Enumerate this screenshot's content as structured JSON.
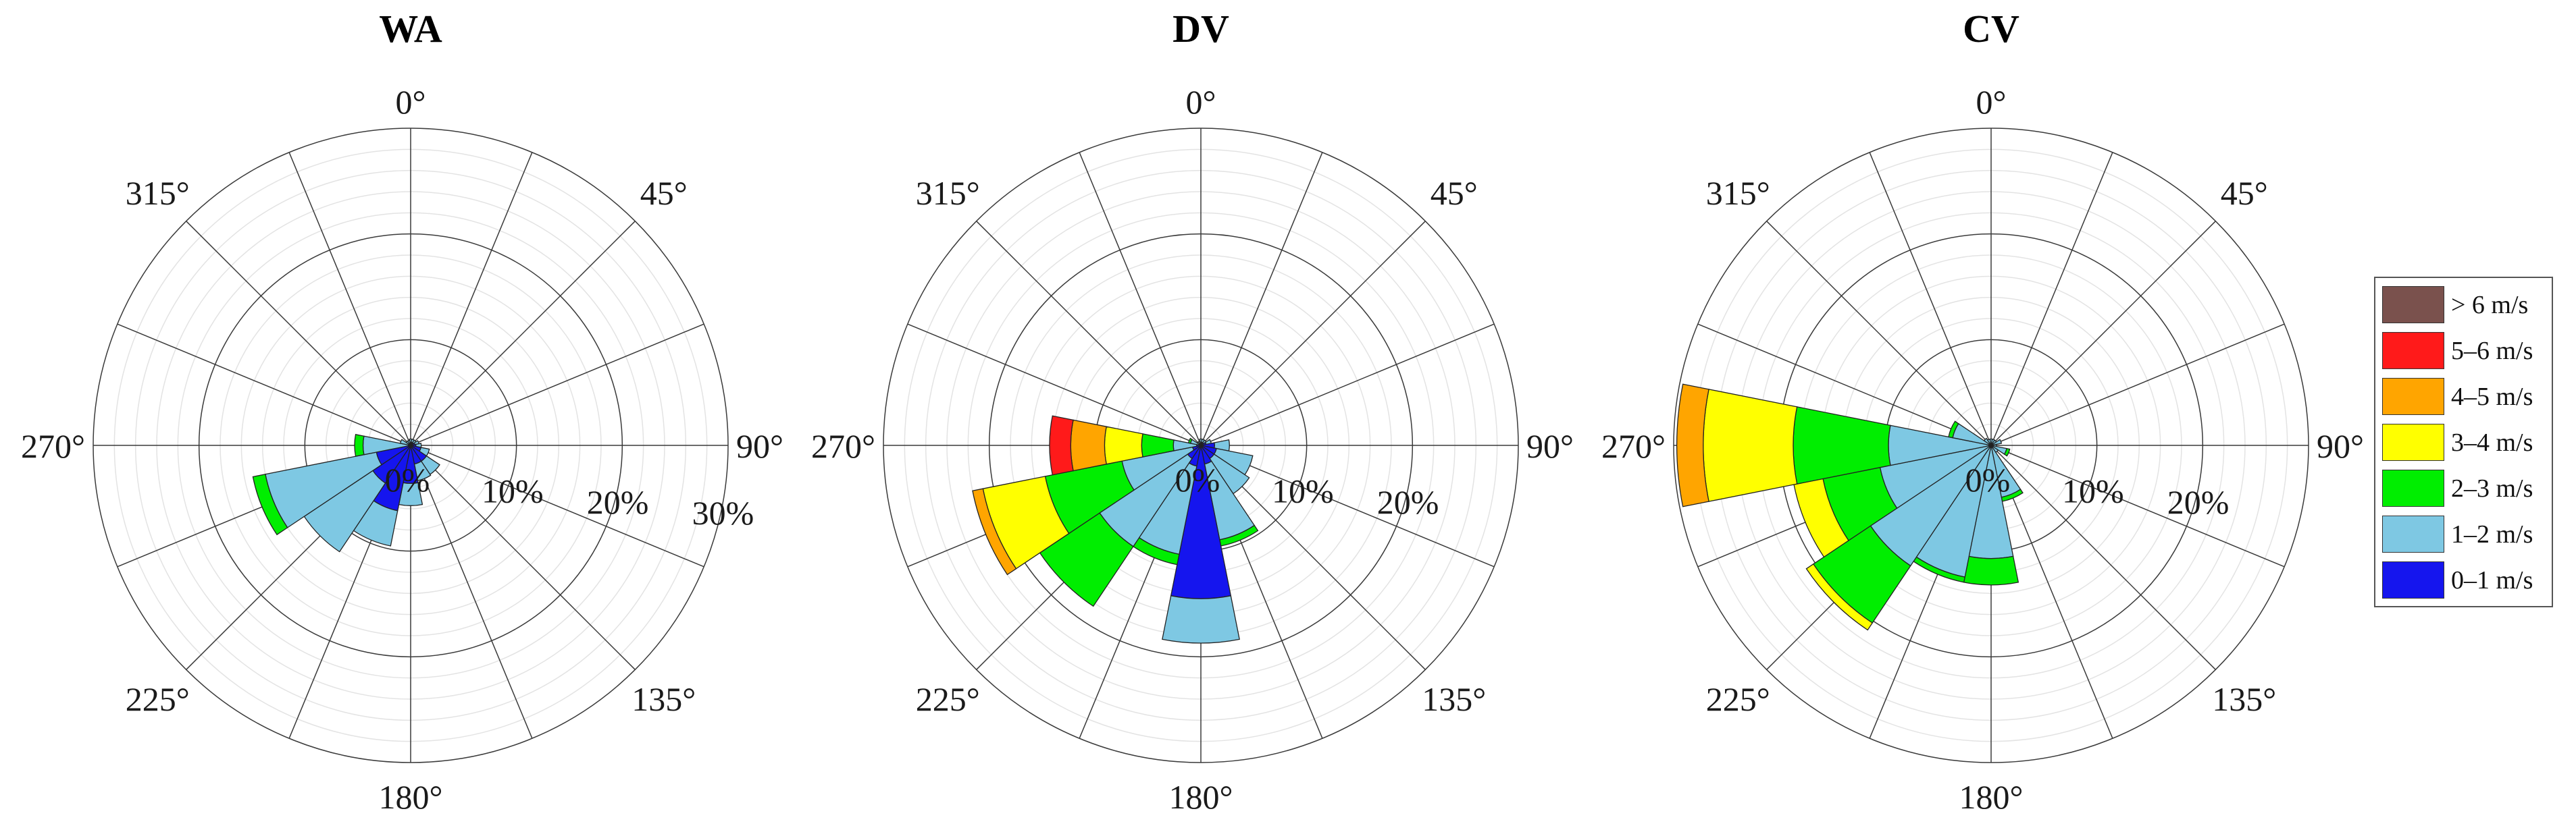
{
  "chart_data": [
    {
      "type": "polar-bar",
      "title": "WA",
      "rmax": 30,
      "r_ticks": [
        "0%",
        "10%",
        "20%",
        "30%"
      ],
      "r_tick_values": [
        0,
        10,
        20,
        30
      ],
      "angle_labels": [
        "0°",
        "45°",
        "90°",
        "135°",
        "180°",
        "225°",
        "270°",
        "315°"
      ],
      "directions": [
        0,
        22.5,
        45,
        67.5,
        90,
        112.5,
        135,
        157.5,
        180,
        202.5,
        225,
        247.5,
        270,
        292.5,
        315,
        337.5
      ],
      "series": [
        {
          "name": "0–1 m/s",
          "values": [
            0.3,
            0.3,
            0.3,
            0.4,
            0.5,
            1.0,
            1.8,
            1.8,
            3.6,
            6.3,
            4.3,
            3.3,
            0.2,
            0.2,
            0.2,
            0.2
          ]
        },
        {
          "name": "1–2 m/s",
          "values": [
            0.3,
            0.3,
            0.3,
            0.4,
            0.5,
            0.8,
            1.5,
            1.6,
            2.1,
            3.4,
            7.8,
            10.7,
            4.3,
            0.8,
            0.3,
            0.3
          ]
        },
        {
          "name": "2–3 m/s",
          "values": [
            0,
            0,
            0,
            0,
            0,
            0,
            0,
            0,
            0,
            0,
            0,
            1.2,
            0.8,
            0,
            0,
            0
          ]
        },
        {
          "name": "3–4 m/s",
          "values": [
            0,
            0,
            0,
            0,
            0,
            0,
            0,
            0,
            0,
            0,
            0,
            0,
            0,
            0,
            0,
            0
          ]
        },
        {
          "name": "4–5 m/s",
          "values": [
            0,
            0,
            0,
            0,
            0,
            0,
            0,
            0,
            0,
            0,
            0,
            0,
            0,
            0,
            0,
            0
          ]
        },
        {
          "name": "5–6 m/s",
          "values": [
            0,
            0,
            0,
            0,
            0,
            0,
            0,
            0,
            0,
            0,
            0,
            0,
            0,
            0,
            0,
            0
          ]
        },
        {
          "name": "> 6 m/s",
          "values": [
            0,
            0,
            0,
            0,
            0,
            0,
            0,
            0,
            0,
            0,
            0,
            0,
            0,
            0,
            0,
            0
          ]
        }
      ]
    },
    {
      "type": "polar-bar",
      "title": "DV",
      "rmax": 30,
      "r_ticks": [
        "0%",
        "10%",
        "20%"
      ],
      "r_tick_values": [
        0,
        10,
        20
      ],
      "angle_labels": [
        "0°",
        "45°",
        "90°",
        "135°",
        "180°",
        "225°",
        "270°",
        "315°"
      ],
      "directions": [
        0,
        22.5,
        45,
        67.5,
        90,
        112.5,
        135,
        157.5,
        180,
        202.5,
        225,
        247.5,
        270,
        292.5,
        315,
        337.5
      ],
      "series": [
        {
          "name": "0–1 m/s",
          "values": [
            0.3,
            0.3,
            0.3,
            0.5,
            1.3,
            1.5,
            1.5,
            1.8,
            14.5,
            2.0,
            1.5,
            0.8,
            0.4,
            0.2,
            0.2,
            0.2
          ]
        },
        {
          "name": "1–2 m/s",
          "values": [
            0.3,
            0.3,
            0.3,
            0.5,
            1.4,
            3.5,
            4.0,
            7.3,
            4.2,
            8.5,
            10.0,
            6.8,
            2.2,
            0.8,
            0.2,
            0.2
          ]
        },
        {
          "name": "2–3 m/s",
          "values": [
            0,
            0,
            0,
            0,
            0,
            0,
            0,
            0.6,
            0,
            1.0,
            6.8,
            7.4,
            3.0,
            0.2,
            0,
            0
          ]
        },
        {
          "name": "3–4 m/s",
          "values": [
            0,
            0,
            0,
            0,
            0,
            0,
            0,
            0,
            0,
            0,
            0,
            6.0,
            3.5,
            0,
            0,
            0
          ]
        },
        {
          "name": "4–5 m/s",
          "values": [
            0,
            0,
            0,
            0,
            0,
            0,
            0,
            0,
            0,
            0,
            0,
            1.0,
            3.2,
            0,
            0,
            0
          ]
        },
        {
          "name": "5–6 m/s",
          "values": [
            0,
            0,
            0,
            0,
            0,
            0,
            0,
            0,
            0,
            0,
            0,
            0,
            2.0,
            0,
            0,
            0
          ]
        },
        {
          "name": "> 6 m/s",
          "values": [
            0,
            0,
            0,
            0,
            0,
            0,
            0,
            0,
            0,
            0,
            0,
            0,
            0,
            0,
            0,
            0
          ]
        }
      ]
    },
    {
      "type": "polar-bar",
      "title": "CV",
      "rmax": 30,
      "r_ticks": [
        "0%",
        "10%",
        "20%"
      ],
      "r_tick_values": [
        0,
        10,
        20
      ],
      "angle_labels": [
        "0°",
        "45°",
        "90°",
        "135°",
        "180°",
        "225°",
        "270°",
        "315°"
      ],
      "directions": [
        0,
        22.5,
        45,
        67.5,
        90,
        112.5,
        135,
        157.5,
        180,
        202.5,
        225,
        247.5,
        270,
        292.5,
        315,
        337.5
      ],
      "series": [
        {
          "name": "0–1 m/s",
          "values": [
            0.2,
            0.2,
            0.2,
            0.2,
            0.2,
            0.2,
            0.2,
            0.2,
            0.2,
            0.2,
            0.2,
            0.2,
            0.2,
            0.2,
            0.2,
            0.2
          ]
        },
        {
          "name": "1–2 m/s",
          "values": [
            0.4,
            0.4,
            0.4,
            0.8,
            0.3,
            1.3,
            0.6,
            4.8,
            10.5,
            12.5,
            13.5,
            10.5,
            9.5,
            3.5,
            0.6,
            0.4
          ]
        },
        {
          "name": "2–3 m/s",
          "values": [
            0,
            0,
            0,
            0,
            0,
            0.3,
            0,
            0.4,
            2.5,
            0.5,
            6.5,
            5.5,
            9.0,
            0.4,
            0,
            0
          ]
        },
        {
          "name": "3–4 m/s",
          "values": [
            0,
            0,
            0,
            0,
            0,
            0,
            0,
            0,
            0,
            0,
            0.8,
            2.8,
            8.5,
            0,
            0,
            0
          ]
        },
        {
          "name": "4–5 m/s",
          "values": [
            0,
            0,
            0,
            0,
            0,
            0,
            0,
            0,
            0,
            0,
            0,
            0,
            2.5,
            0,
            0,
            0
          ]
        },
        {
          "name": "5–6 m/s",
          "values": [
            0,
            0,
            0,
            0,
            0,
            0,
            0,
            0,
            0,
            0,
            0,
            0,
            0,
            0,
            0,
            0
          ]
        },
        {
          "name": "> 6 m/s",
          "values": [
            0,
            0,
            0,
            0,
            0,
            0,
            0,
            0,
            0,
            0,
            0,
            0,
            0,
            0,
            0,
            0
          ]
        }
      ]
    }
  ],
  "legend": [
    {
      "label": "> 6 m/s",
      "color": "#7a514d"
    },
    {
      "label": "5–6 m/s",
      "color": "#ff1a1a"
    },
    {
      "label": "4–5 m/s",
      "color": "#ffa500"
    },
    {
      "label": "3–4 m/s",
      "color": "#ffff00"
    },
    {
      "label": "2–3 m/s",
      "color": "#00ee00"
    },
    {
      "label": "1–2 m/s",
      "color": "#7ec8e3"
    },
    {
      "label": "0–1 m/s",
      "color": "#1515ee"
    }
  ],
  "series_colors": {
    "0–1 m/s": "#1515ee",
    "1–2 m/s": "#7ec8e3",
    "2–3 m/s": "#00ee00",
    "3–4 m/s": "#ffff00",
    "4–5 m/s": "#ffa500",
    "5–6 m/s": "#ff1a1a",
    "> 6 m/s": "#7a514d"
  }
}
